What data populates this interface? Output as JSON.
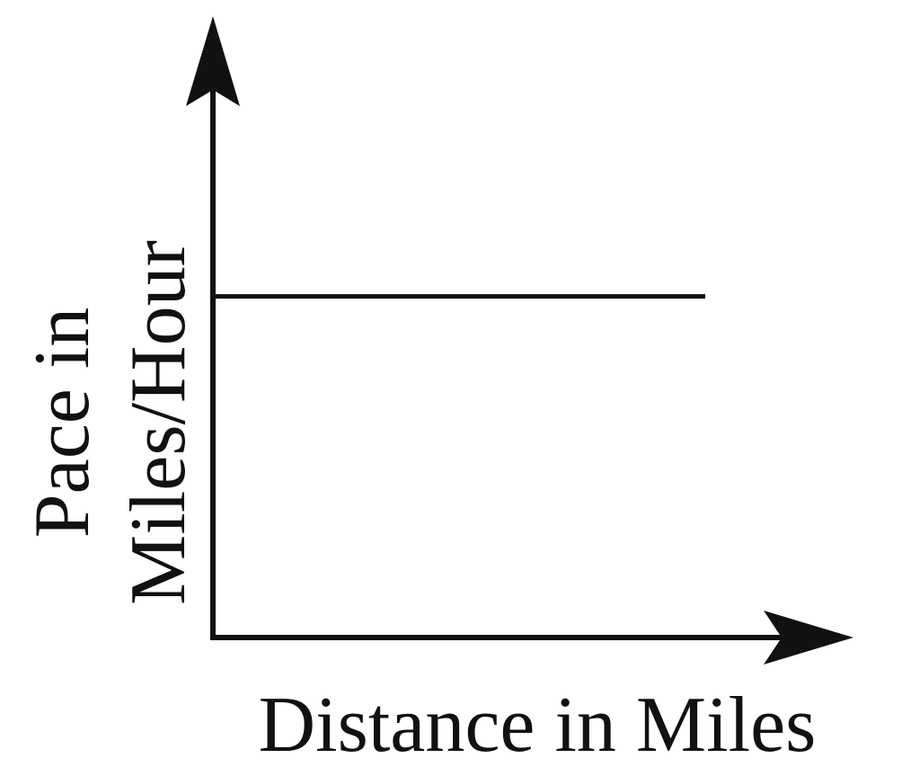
{
  "chart_data": {
    "type": "line",
    "xlabel": "Distance in Miles",
    "ylabel_lines": [
      "Pace in",
      "Miles/Hour"
    ],
    "series": [
      {
        "x": [
          0,
          1
        ],
        "y": [
          1,
          1
        ]
      }
    ],
    "xlim": [
      0,
      1
    ],
    "ylim": [
      0,
      1.6
    ],
    "axis_ticks": false,
    "grid": false,
    "axis_arrows": true,
    "colors": {
      "line": "#111111",
      "axis": "#111111",
      "background": "#ffffff"
    }
  }
}
